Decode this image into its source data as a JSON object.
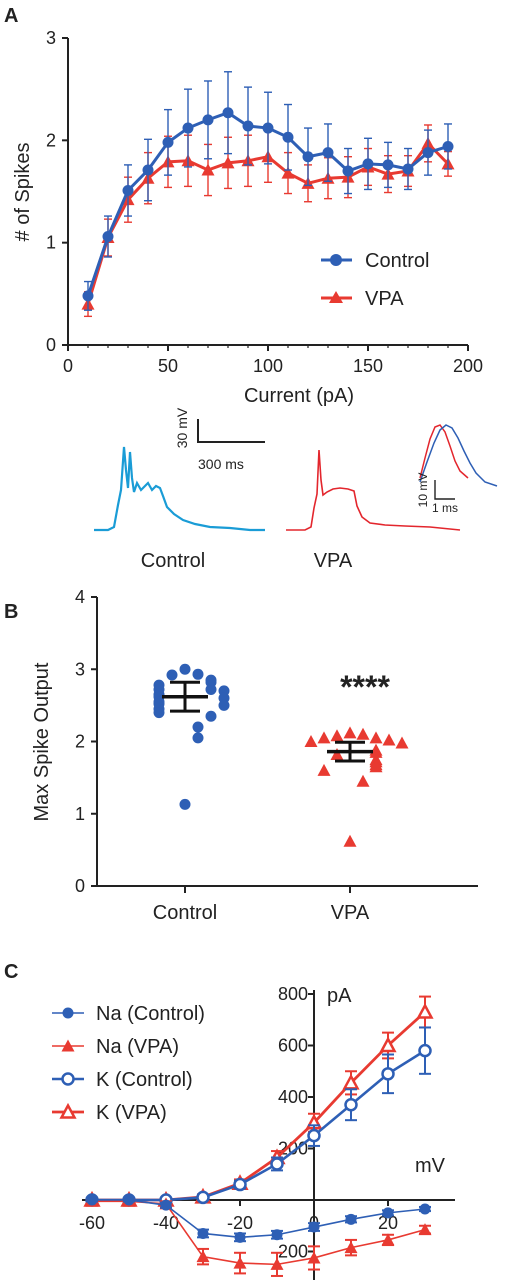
{
  "colors": {
    "control": "#2e5fb5",
    "vpa": "#e83a31",
    "trace_control": "#1a9cd6",
    "trace_vpa": "#e3262d",
    "axis": "#222222"
  },
  "panels": {
    "a": "A",
    "b": "B",
    "c": "C"
  },
  "chart_data": [
    {
      "type": "line",
      "panel": "A",
      "xlabel": "Current (pA)",
      "ylabel": "# of Spikes",
      "xlim": [
        0,
        200
      ],
      "ylim": [
        0,
        3
      ],
      "xticks": [
        "0",
        "50",
        "100",
        "150",
        "200"
      ],
      "yticks": [
        "0",
        "1",
        "2",
        "3"
      ],
      "legend_position": "right",
      "x": [
        10,
        20,
        30,
        40,
        50,
        60,
        70,
        80,
        90,
        100,
        110,
        120,
        130,
        140,
        150,
        160,
        170,
        180,
        190
      ],
      "series": [
        {
          "name": "Control",
          "marker": "circle",
          "values": [
            0.48,
            1.06,
            1.51,
            1.71,
            1.98,
            2.12,
            2.2,
            2.27,
            2.14,
            2.12,
            2.03,
            1.84,
            1.88,
            1.7,
            1.77,
            1.76,
            1.72,
            1.88,
            1.94
          ],
          "err": [
            0.14,
            0.2,
            0.25,
            0.3,
            0.32,
            0.38,
            0.38,
            0.4,
            0.38,
            0.35,
            0.32,
            0.28,
            0.28,
            0.22,
            0.25,
            0.22,
            0.2,
            0.22,
            0.22
          ]
        },
        {
          "name": "VPA",
          "marker": "triangle",
          "values": [
            0.4,
            1.05,
            1.42,
            1.63,
            1.79,
            1.8,
            1.71,
            1.78,
            1.8,
            1.84,
            1.68,
            1.58,
            1.63,
            1.64,
            1.74,
            1.67,
            1.7,
            1.97,
            1.77
          ],
          "err": [
            0.12,
            0.18,
            0.22,
            0.25,
            0.25,
            0.25,
            0.25,
            0.25,
            0.25,
            0.25,
            0.2,
            0.18,
            0.2,
            0.2,
            0.18,
            0.18,
            0.15,
            0.18,
            0.12
          ]
        }
      ]
    },
    {
      "type": "scatter",
      "panel": "B",
      "ylabel": "Max Spike Output",
      "ylim": [
        0,
        4
      ],
      "yticks": [
        "0",
        "1",
        "2",
        "3",
        "4"
      ],
      "categories": [
        "Control",
        "VPA"
      ],
      "significance": "****",
      "series": [
        {
          "name": "Control",
          "marker": "circle",
          "mean": 2.62,
          "error": 0.2,
          "points": [
            3.0,
            2.93,
            2.92,
            2.85,
            2.82,
            2.78,
            2.72,
            2.72,
            2.7,
            2.65,
            2.62,
            2.6,
            2.55,
            2.52,
            2.5,
            2.45,
            2.4,
            2.35,
            2.2,
            2.05,
            1.13
          ]
        },
        {
          "name": "VPA",
          "marker": "triangle",
          "mean": 1.86,
          "error": 0.13,
          "points": [
            2.12,
            2.1,
            2.08,
            2.05,
            2.05,
            2.02,
            2.0,
            1.98,
            1.88,
            1.85,
            1.82,
            1.75,
            1.72,
            1.68,
            1.65,
            1.6,
            1.45,
            0.62
          ]
        }
      ]
    },
    {
      "type": "line",
      "panel": "C",
      "xlabel": "mV",
      "ylabel": "pA",
      "xlim": [
        -60,
        30
      ],
      "ylim": [
        -300,
        800
      ],
      "xticks": [
        "-60",
        "-40",
        "-20",
        "0",
        "20"
      ],
      "yticks": [
        "-200",
        "200",
        "400",
        "600",
        "800"
      ],
      "legend_position": "top-left",
      "x": [
        -60,
        -50,
        -40,
        -30,
        -20,
        -10,
        0,
        10,
        20,
        30
      ],
      "series": [
        {
          "name": "Na (Control)",
          "marker": "circle",
          "values": [
            0,
            0,
            -20,
            -130,
            -145,
            -135,
            -105,
            -75,
            -50,
            -35
          ],
          "err": [
            5,
            5,
            10,
            15,
            15,
            15,
            15,
            12,
            10,
            8
          ]
        },
        {
          "name": "Na (VPA)",
          "marker": "triangle",
          "values": [
            -5,
            -5,
            -15,
            -220,
            -245,
            -250,
            -225,
            -185,
            -155,
            -115
          ],
          "err": [
            8,
            8,
            10,
            30,
            40,
            45,
            45,
            30,
            20,
            15
          ]
        },
        {
          "name": "K (Control)",
          "marker": "open-circle",
          "values": [
            0,
            0,
            0,
            10,
            60,
            140,
            250,
            370,
            490,
            580
          ],
          "err": [
            5,
            5,
            5,
            10,
            15,
            25,
            40,
            60,
            75,
            90
          ]
        },
        {
          "name": "K (VPA)",
          "marker": "open-triangle",
          "values": [
            0,
            0,
            0,
            12,
            65,
            165,
            300,
            455,
            600,
            730
          ],
          "err": [
            5,
            5,
            5,
            10,
            15,
            25,
            35,
            45,
            50,
            60
          ]
        }
      ]
    }
  ],
  "traces": {
    "scale_v": "30 mV",
    "scale_t": "300 ms",
    "inset_v": "10 mV",
    "inset_t": "1 ms",
    "label_control": "Control",
    "label_vpa": "VPA"
  }
}
